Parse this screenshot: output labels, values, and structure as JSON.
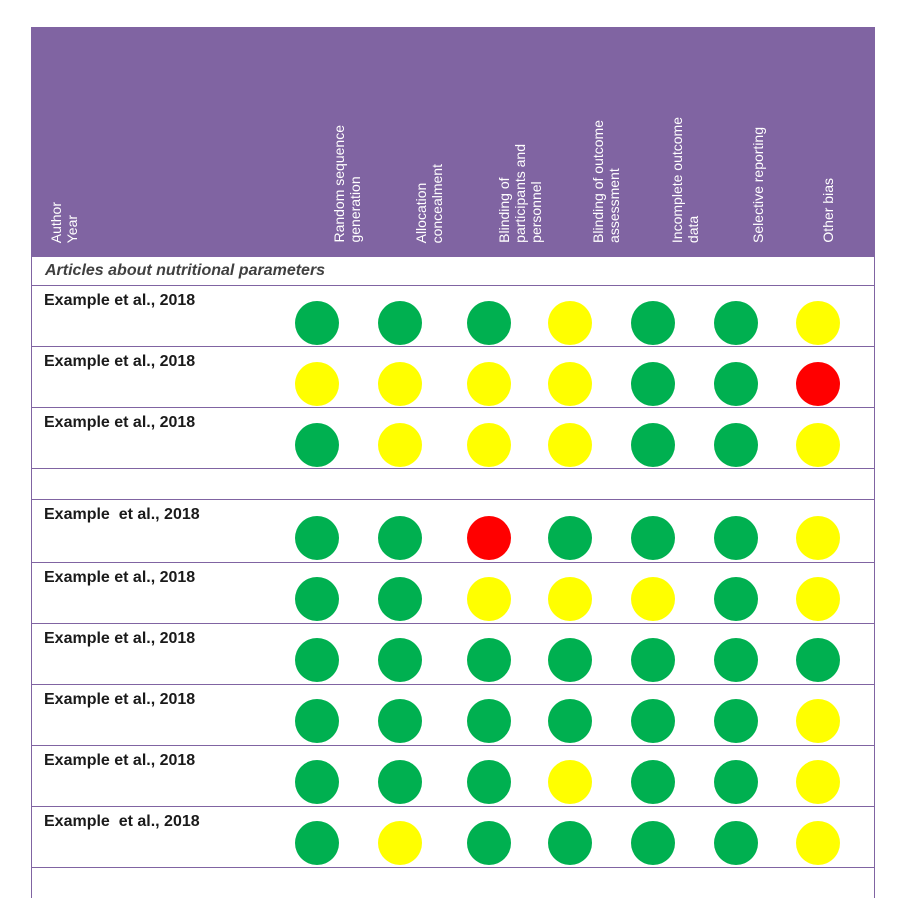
{
  "header": {
    "author_label": "Author\nYear",
    "columns": [
      "Random sequence\ngeneration",
      "Allocation\nconcealment",
      "Blinding of\nparticipants and\npersonnel",
      "Blinding of outcome\nassessment",
      "Incomplete outcome\ndata",
      "Selective reporting",
      "Other bias"
    ]
  },
  "section_title": "Articles about nutritional parameters",
  "legend_colors": {
    "green": "#00B050",
    "yellow": "#FFFF00",
    "red": "#FF0000"
  },
  "group1": [
    {
      "author": "Example et al., 2018",
      "ratings": [
        "green",
        "green",
        "green",
        "yellow",
        "green",
        "green",
        "yellow"
      ]
    },
    {
      "author": "Example et al., 2018",
      "ratings": [
        "yellow",
        "yellow",
        "yellow",
        "yellow",
        "green",
        "green",
        "red"
      ]
    },
    {
      "author": "Example et al., 2018",
      "ratings": [
        "green",
        "yellow",
        "yellow",
        "yellow",
        "green",
        "green",
        "yellow"
      ]
    }
  ],
  "group2": [
    {
      "author": "Example  et al., 2018",
      "ratings": [
        "green",
        "green",
        "red",
        "green",
        "green",
        "green",
        "yellow"
      ]
    },
    {
      "author": "Example et al., 2018",
      "ratings": [
        "green",
        "green",
        "yellow",
        "yellow",
        "yellow",
        "green",
        "yellow"
      ]
    },
    {
      "author": "Example et al., 2018",
      "ratings": [
        "green",
        "green",
        "green",
        "green",
        "green",
        "green",
        "green"
      ]
    },
    {
      "author": "Example et al., 2018",
      "ratings": [
        "green",
        "green",
        "green",
        "green",
        "green",
        "green",
        "yellow"
      ]
    },
    {
      "author": "Example et al., 2018",
      "ratings": [
        "green",
        "green",
        "green",
        "yellow",
        "green",
        "green",
        "yellow"
      ]
    },
    {
      "author": "Example  et al., 2018",
      "ratings": [
        "green",
        "yellow",
        "green",
        "green",
        "green",
        "green",
        "yellow"
      ]
    }
  ]
}
